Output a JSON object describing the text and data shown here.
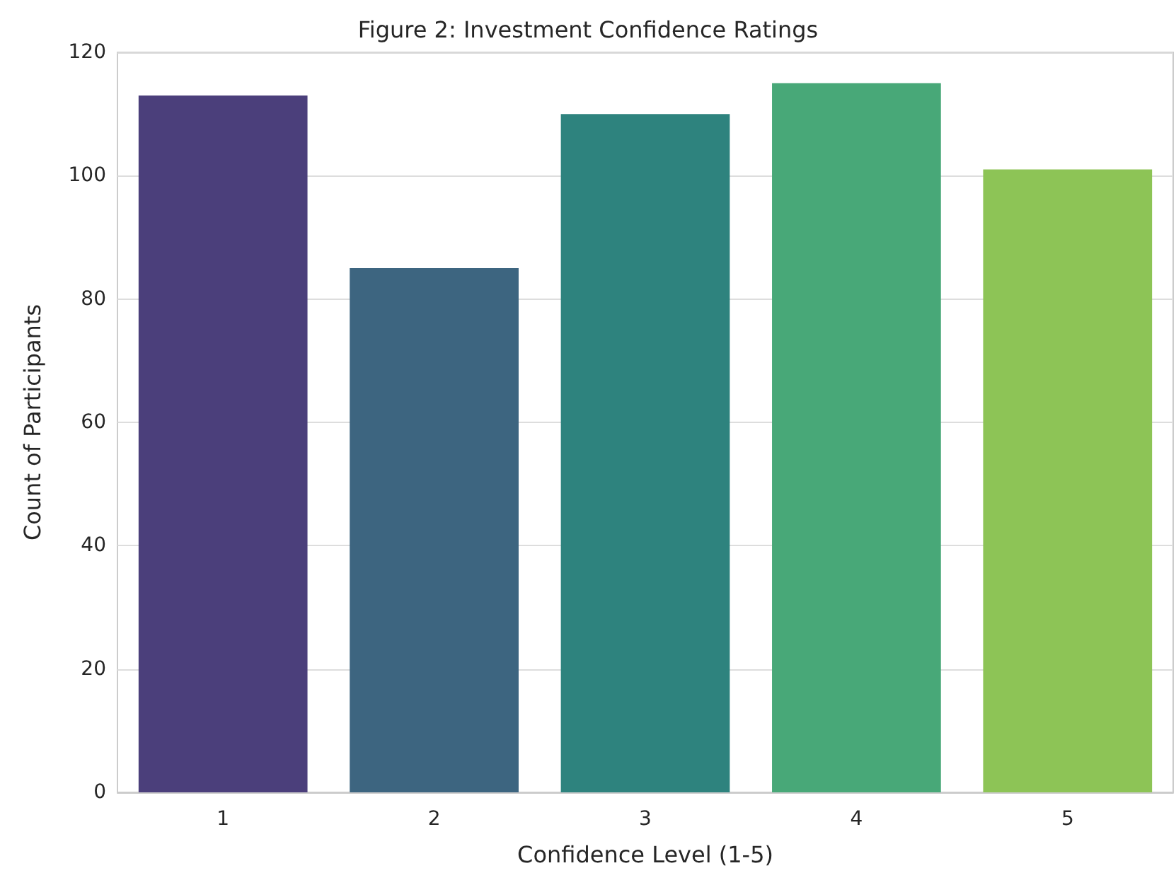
{
  "chart_data": {
    "type": "bar",
    "title": "Figure 2: Investment Confidence Ratings",
    "xlabel": "Confidence Level (1-5)",
    "ylabel": "Count of Participants",
    "categories": [
      "1",
      "2",
      "3",
      "4",
      "5"
    ],
    "values": [
      113,
      85,
      110,
      115,
      101
    ],
    "colors": [
      "#4b3f7b",
      "#3d6580",
      "#2e837e",
      "#48a878",
      "#8dc456"
    ],
    "ylim": [
      0,
      120
    ],
    "yticks": [
      0,
      20,
      40,
      60,
      80,
      100,
      120
    ],
    "grid": "y"
  }
}
